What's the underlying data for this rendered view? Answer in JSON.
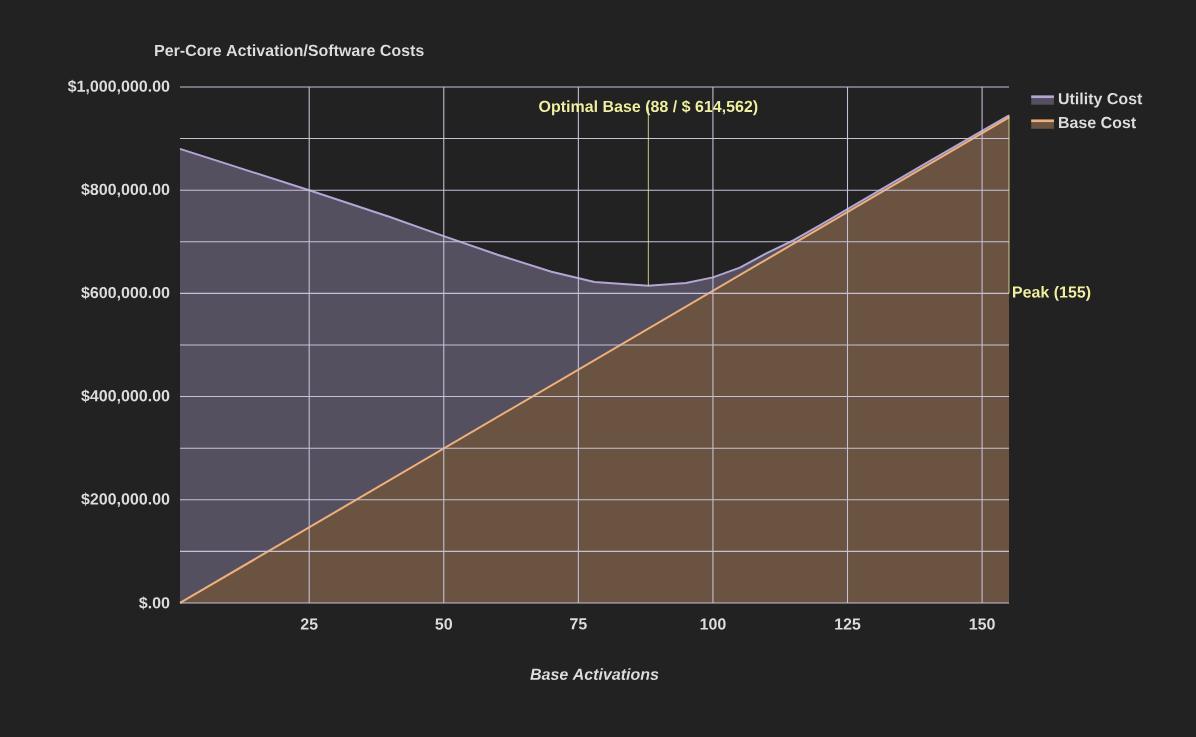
{
  "chart_data": {
    "type": "area",
    "title": "Per-Core Activation/Software Costs",
    "xlabel": "Base Activations",
    "xlim": [
      1,
      155
    ],
    "xticks": [
      25,
      50,
      75,
      100,
      125,
      150
    ],
    "ylim": [
      0,
      1000000
    ],
    "yticks": [
      {
        "value": 0,
        "label": "$.00"
      },
      {
        "value": 100000,
        "label": null
      },
      {
        "value": 200000,
        "label": "$200,000.00"
      },
      {
        "value": 300000,
        "label": null
      },
      {
        "value": 400000,
        "label": "$400,000.00"
      },
      {
        "value": 500000,
        "label": null
      },
      {
        "value": 600000,
        "label": "$600,000.00"
      },
      {
        "value": 700000,
        "label": null
      },
      {
        "value": 800000,
        "label": "$800,000.00"
      },
      {
        "value": 900000,
        "label": null
      },
      {
        "value": 1000000,
        "label": "$1,000,000.00"
      }
    ],
    "grid": true,
    "legend": "top right",
    "series": [
      {
        "name": "Utility Cost",
        "color": "#b3a6d4",
        "x": [
          1,
          10,
          25,
          40,
          50,
          60,
          70,
          78,
          88,
          95,
          100,
          105,
          110,
          115,
          120,
          130,
          140,
          155
        ],
        "values": [
          880000,
          850000,
          800000,
          748000,
          711000,
          675000,
          642000,
          622000,
          615000,
          620000,
          631000,
          650000,
          678000,
          703000,
          733000,
          794000,
          855000,
          945000
        ]
      },
      {
        "name": "Base Cost",
        "color": "#f0b07a",
        "x": [
          1,
          155
        ],
        "values": [
          0,
          941000
        ]
      }
    ],
    "annotations": [
      {
        "text": "Optimal Base (88 / $ 614,562)",
        "x": 88,
        "y": 614562
      },
      {
        "text": "Peak (155)",
        "x": 155,
        "y": 945000
      }
    ]
  }
}
